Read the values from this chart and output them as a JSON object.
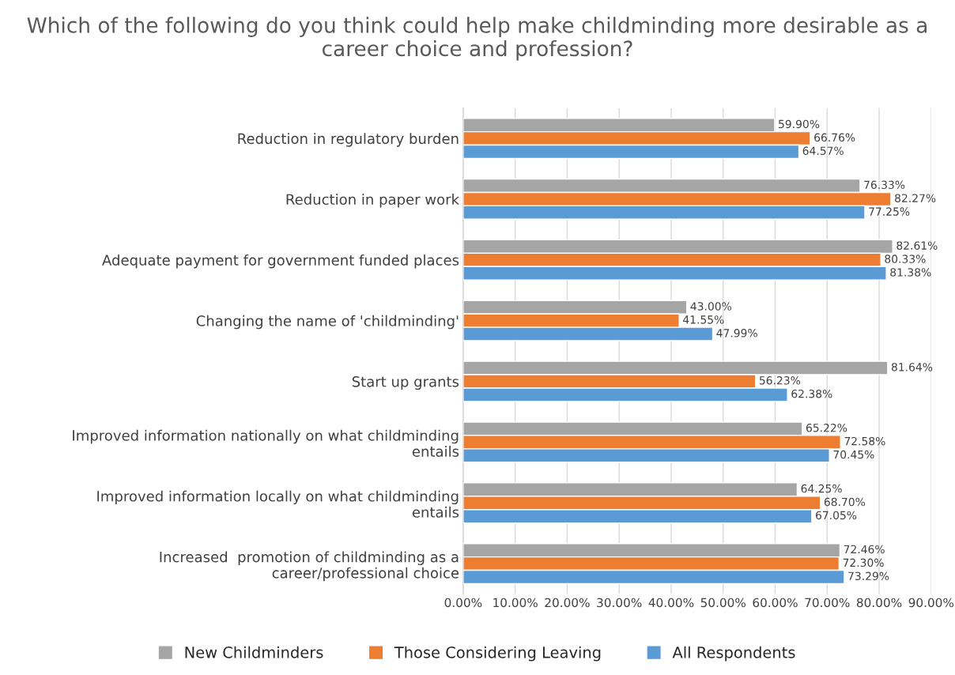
{
  "chart_data": {
    "type": "bar",
    "orientation": "horizontal",
    "title": "Which of the following do you think could help make childminding more desirable as a career choice and profession?",
    "categories": [
      "Reduction in regulatory burden",
      "Reduction in paper work",
      "Adequate payment for government funded places",
      "Changing the name of 'childminding'",
      "Start up grants",
      "Improved information nationally on what childminding\nentails",
      "Improved information locally on what childminding\nentails",
      "Increased  promotion of childminding as a\ncareer/professional choice"
    ],
    "series": [
      {
        "name": "New Childminders",
        "color": "#a5a5a5",
        "values": [
          59.9,
          76.33,
          82.61,
          43.0,
          81.64,
          65.22,
          64.25,
          72.46
        ],
        "value_labels": [
          "59.90%",
          "76.33%",
          "82.61%",
          "43.00%",
          "81.64%",
          "65.22%",
          "64.25%",
          "72.46%"
        ]
      },
      {
        "name": "Those Considering Leaving",
        "color": "#ed7d31",
        "values": [
          66.76,
          82.27,
          80.33,
          41.55,
          56.23,
          72.58,
          68.7,
          72.3
        ],
        "value_labels": [
          "66.76%",
          "82.27%",
          "80.33%",
          "41.55%",
          "56.23%",
          "72.58%",
          "68.70%",
          "72.30%"
        ]
      },
      {
        "name": "All Respondents",
        "color": "#5b9bd5",
        "values": [
          64.57,
          77.25,
          81.38,
          47.99,
          62.38,
          70.45,
          67.05,
          73.29
        ],
        "value_labels": [
          "64.57%",
          "77.25%",
          "81.38%",
          "47.99%",
          "62.38%",
          "70.45%",
          "67.05%",
          "73.29%"
        ]
      }
    ],
    "xlim": [
      0,
      90
    ],
    "xticks": [
      {
        "value": 0,
        "label": "0.00%"
      },
      {
        "value": 10,
        "label": "10.00%"
      },
      {
        "value": 20,
        "label": "20.00%"
      },
      {
        "value": 30,
        "label": "30.00%"
      },
      {
        "value": 40,
        "label": "40.00%"
      },
      {
        "value": 50,
        "label": "50.00%"
      },
      {
        "value": 60,
        "label": "60.00%"
      },
      {
        "value": 70,
        "label": "70.00%"
      },
      {
        "value": 80,
        "label": "80.00%"
      },
      {
        "value": 90,
        "label": "90.00%"
      }
    ],
    "grid": "x",
    "legend": "bottom"
  }
}
